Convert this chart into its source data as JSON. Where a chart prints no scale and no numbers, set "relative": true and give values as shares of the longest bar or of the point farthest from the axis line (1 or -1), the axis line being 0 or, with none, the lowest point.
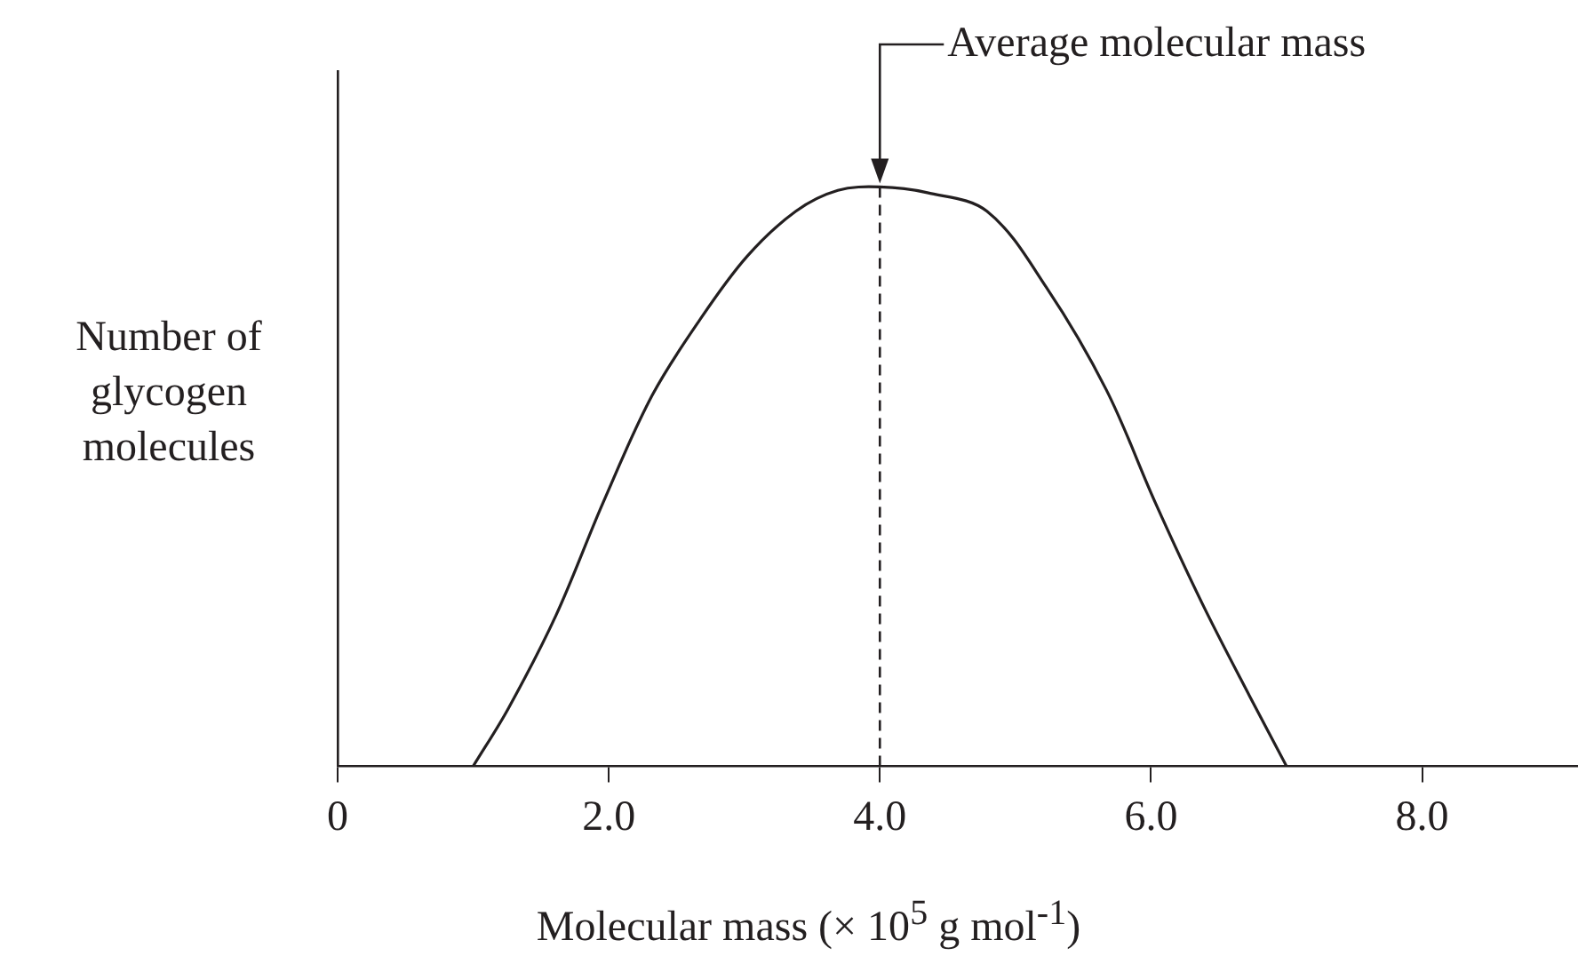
{
  "chart_data": {
    "type": "line",
    "xlabel": "Molecular mass (× 10$^{5}$ g mol$^{-1}$)",
    "ylabel": "Number of glycogen molecules",
    "relative": true,
    "x": [
      1.0,
      1.26,
      1.61,
      1.96,
      2.32,
      2.67,
      3.02,
      3.38,
      3.69,
      4.0,
      4.35,
      4.79,
      5.23,
      5.67,
      6.03,
      6.38,
      6.73,
      7.0
    ],
    "series": [
      {
        "color": "#231f20",
        "values": [
          0,
          0.1,
          0.26,
          0.456,
          0.64,
          0.77,
          0.88,
          0.958,
          0.994,
          1,
          0.99,
          0.958,
          0.826,
          0.65,
          0.456,
          0.28,
          0.12,
          0
        ]
      }
    ],
    "xlim": [
      0,
      9.15
    ],
    "xticks": [
      0,
      {
        "value": 2,
        "label": "2.0"
      },
      {
        "value": 4,
        "label": "4.0"
      },
      {
        "value": 6,
        "label": "6.0"
      },
      {
        "value": 8,
        "label": "8.0"
      }
    ],
    "ref_lines": [
      {
        "axis": "x",
        "value": 4.0,
        "label": null,
        "line_style": "dashed",
        "color": "#231f20"
      }
    ],
    "annotations": [
      "Average molecular mass"
    ],
    "grid": false,
    "legend": false,
    "marker": "none",
    "line_style": "solid"
  }
}
